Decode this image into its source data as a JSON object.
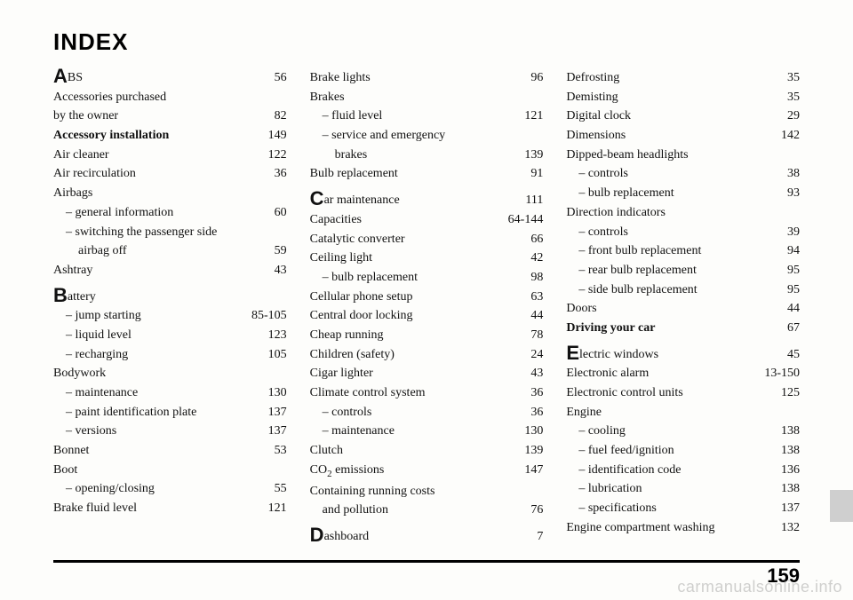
{
  "title": "INDEX",
  "page_number": "159",
  "watermark": "carmanualsonline.info",
  "style": {
    "bg": "#fdfdfb",
    "text": "#111111",
    "rule": "#000000",
    "tab": "#cfcfcf",
    "title_fontsize": 26,
    "body_fontsize": 14,
    "pagenum_fontsize": 22
  },
  "columns": [
    [
      {
        "drop": "A",
        "label": "BS",
        "page": "56"
      },
      {
        "label": "Accessories purchased",
        "page": ""
      },
      {
        "label": "by the owner",
        "page": "82",
        "continues": true
      },
      {
        "label": "Accessory installation",
        "page": "149",
        "bold": true
      },
      {
        "label": "Air cleaner",
        "page": "122"
      },
      {
        "label": "Air recirculation",
        "page": "36"
      },
      {
        "label": "Airbags",
        "page": ""
      },
      {
        "label": "– general information",
        "page": "60",
        "sub": true
      },
      {
        "label": "– switching the passenger side",
        "page": "",
        "sub": true
      },
      {
        "label": "airbag off",
        "page": "59",
        "subsub": true
      },
      {
        "label": "Ashtray",
        "page": "43"
      },
      {
        "space": true
      },
      {
        "drop": "B",
        "label": "attery",
        "page": ""
      },
      {
        "label": "– jump starting",
        "page": "85-105",
        "sub": true
      },
      {
        "label": "– liquid level",
        "page": "123",
        "sub": true
      },
      {
        "label": "– recharging",
        "page": "105",
        "sub": true
      },
      {
        "label": "Bodywork",
        "page": ""
      },
      {
        "label": "– maintenance",
        "page": "130",
        "sub": true
      },
      {
        "label": "– paint identification plate",
        "page": "137",
        "sub": true
      },
      {
        "label": "– versions",
        "page": "137",
        "sub": true
      },
      {
        "label": "Bonnet",
        "page": "53"
      },
      {
        "label": "Boot",
        "page": ""
      },
      {
        "label": "– opening/closing",
        "page": "55",
        "sub": true
      },
      {
        "label": "Brake fluid level",
        "page": "121"
      }
    ],
    [
      {
        "label": "Brake lights",
        "page": "96"
      },
      {
        "label": "Brakes",
        "page": ""
      },
      {
        "label": "– fluid level",
        "page": "121",
        "sub": true
      },
      {
        "label": "– service and emergency",
        "page": "",
        "sub": true
      },
      {
        "label": "brakes",
        "page": "139",
        "subsub": true
      },
      {
        "label": "Bulb replacement",
        "page": "91"
      },
      {
        "space": true
      },
      {
        "drop": "C",
        "label": "ar maintenance",
        "page": "111"
      },
      {
        "label": "Capacities",
        "page": "64-144"
      },
      {
        "label": "Catalytic converter",
        "page": "66"
      },
      {
        "label": "Ceiling light",
        "page": "42"
      },
      {
        "label": "– bulb replacement",
        "page": "98",
        "sub": true
      },
      {
        "label": "Cellular phone setup",
        "page": "63"
      },
      {
        "label": "Central door locking",
        "page": "44"
      },
      {
        "label": "Cheap running",
        "page": "78"
      },
      {
        "label": "Children (safety)",
        "page": "24"
      },
      {
        "label": "Cigar lighter",
        "page": "43"
      },
      {
        "label": "Climate control system",
        "page": "36"
      },
      {
        "label": "– controls",
        "page": "36",
        "sub": true
      },
      {
        "label": "– maintenance",
        "page": "130",
        "sub": true
      },
      {
        "label": "Clutch",
        "page": "139"
      },
      {
        "label": "CO",
        "sub2": "2",
        "label2": " emissions",
        "page": "147"
      },
      {
        "label": "Containing running costs",
        "page": ""
      },
      {
        "label": "and pollution",
        "page": "76",
        "sub": true
      },
      {
        "space": true
      },
      {
        "drop": "D",
        "label": "ashboard",
        "page": "7"
      }
    ],
    [
      {
        "label": "Defrosting",
        "page": "35"
      },
      {
        "label": "Demisting",
        "page": "35"
      },
      {
        "label": "Digital clock",
        "page": "29"
      },
      {
        "label": "Dimensions",
        "page": "142"
      },
      {
        "label": "Dipped-beam headlights",
        "page": ""
      },
      {
        "label": "– controls",
        "page": "38",
        "sub": true
      },
      {
        "label": "– bulb replacement",
        "page": "93",
        "sub": true
      },
      {
        "label": "Direction indicators",
        "page": ""
      },
      {
        "label": "– controls",
        "page": "39",
        "sub": true
      },
      {
        "label": "– front bulb replacement",
        "page": "94",
        "sub": true
      },
      {
        "label": "– rear bulb replacement",
        "page": "95",
        "sub": true
      },
      {
        "label": "– side bulb replacement",
        "page": "95",
        "sub": true
      },
      {
        "label": "Doors",
        "page": "44"
      },
      {
        "label": "Driving your car",
        "page": "67",
        "bold": true
      },
      {
        "space": true
      },
      {
        "drop": "E",
        "label": "lectric windows",
        "page": "45"
      },
      {
        "label": "Electronic alarm",
        "page": "13-150"
      },
      {
        "label": "Electronic control units",
        "page": "125"
      },
      {
        "label": "Engine",
        "page": ""
      },
      {
        "label": "– cooling",
        "page": "138",
        "sub": true
      },
      {
        "label": "– fuel feed/ignition",
        "page": "138",
        "sub": true
      },
      {
        "label": "– identification code",
        "page": "136",
        "sub": true
      },
      {
        "label": "– lubrication",
        "page": "138",
        "sub": true
      },
      {
        "label": "– specifications",
        "page": "137",
        "sub": true
      },
      {
        "label": "Engine compartment washing",
        "page": "132"
      }
    ]
  ]
}
